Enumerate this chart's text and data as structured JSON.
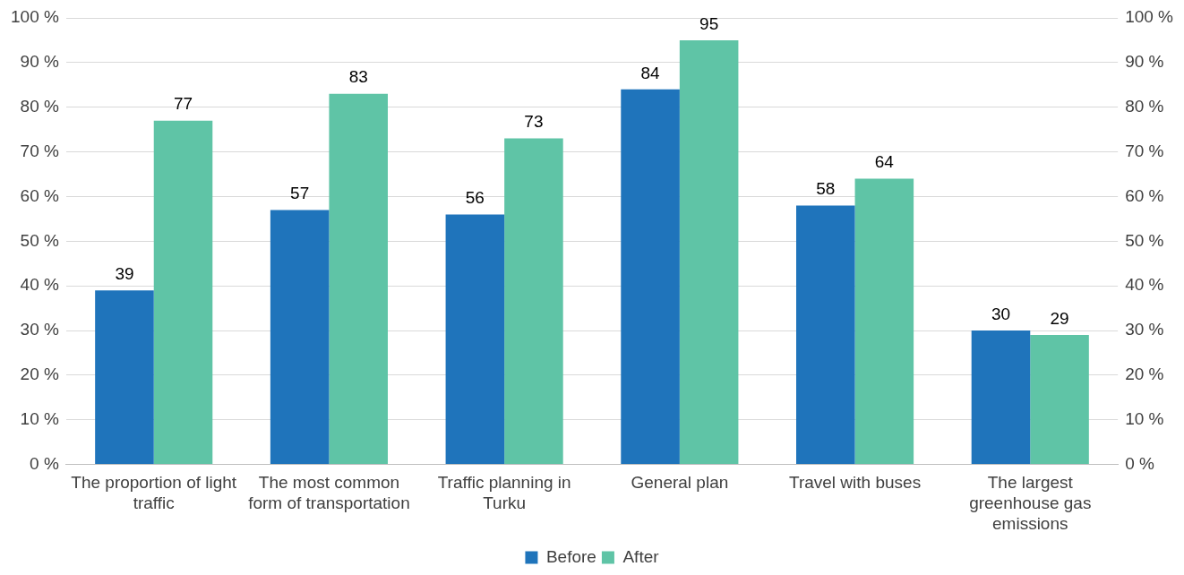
{
  "chart_data": {
    "type": "bar",
    "categories": [
      "The proportion of light traffic",
      "The most common form of transportation",
      "Traffic planning in Turku",
      "General plan",
      "Travel with buses",
      "The largest greenhouse gas emissions"
    ],
    "series": [
      {
        "name": "Before",
        "color": "#1f74bb",
        "values": [
          39,
          57,
          56,
          84,
          58,
          30
        ]
      },
      {
        "name": "After",
        "color": "#5fc4a6",
        "values": [
          77,
          83,
          73,
          95,
          64,
          29
        ]
      }
    ],
    "ylim": [
      0,
      100
    ],
    "yticks": [
      {
        "value": 0,
        "label": "0 %"
      },
      {
        "value": 10,
        "label": "10 %"
      },
      {
        "value": 20,
        "label": "20 %"
      },
      {
        "value": 30,
        "label": "30 %"
      },
      {
        "value": 40,
        "label": "40 %"
      },
      {
        "value": 50,
        "label": "50 %"
      },
      {
        "value": 60,
        "label": "60 %"
      },
      {
        "value": 70,
        "label": "70 %"
      },
      {
        "value": 80,
        "label": "80 %"
      },
      {
        "value": 90,
        "label": "90 %"
      },
      {
        "value": 100,
        "label": "100 %"
      }
    ],
    "y2lim": [
      0,
      100
    ],
    "y2ticks": [
      {
        "value": 0,
        "label": "0 %"
      },
      {
        "value": 10,
        "label": "10 %"
      },
      {
        "value": 20,
        "label": "20 %"
      },
      {
        "value": 30,
        "label": "30 %"
      },
      {
        "value": 40,
        "label": "40 %"
      },
      {
        "value": 50,
        "label": "50 %"
      },
      {
        "value": 60,
        "label": "60 %"
      },
      {
        "value": 70,
        "label": "70 %"
      },
      {
        "value": 80,
        "label": "80 %"
      },
      {
        "value": 90,
        "label": "90 %"
      },
      {
        "value": 100,
        "label": "100 %"
      }
    ],
    "grid": "y",
    "legend": "bottom",
    "data_labels": true
  }
}
